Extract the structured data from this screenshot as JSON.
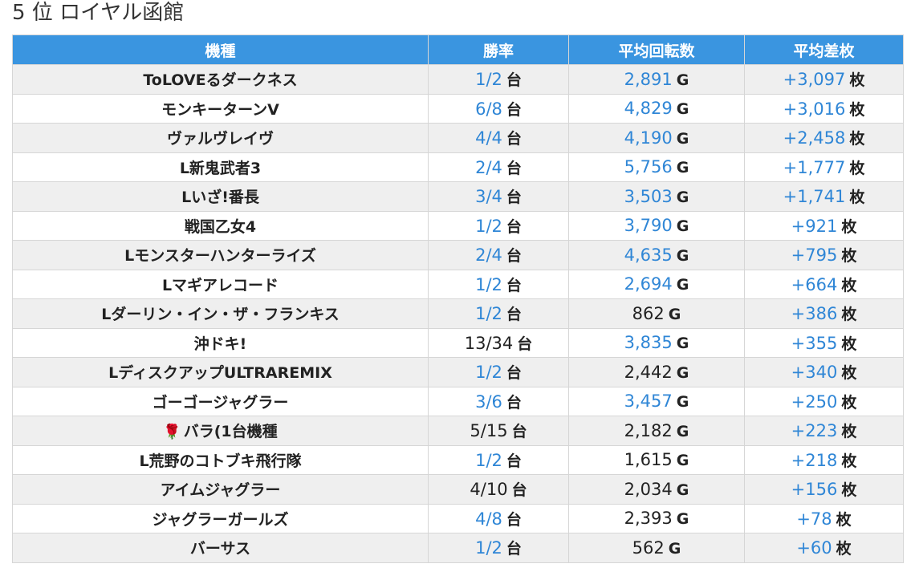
{
  "page": {
    "title": "5 位 ロイヤル函館"
  },
  "table": {
    "headers": [
      "機種",
      "勝率",
      "平均回転数",
      "平均差枚"
    ],
    "rows": [
      {
        "machine": "ToLOVEるダークネス",
        "win_rate": "1/2",
        "win_rate_unit": "台",
        "avg_spins": "2,891",
        "avg_spins_unit": "G",
        "avg_diff": "+3,097",
        "avg_diff_unit": "枚",
        "win_rate_blue": true,
        "avg_spins_blue": true,
        "avg_diff_blue": true
      },
      {
        "machine": "モンキーターンV",
        "win_rate": "6/8",
        "win_rate_unit": "台",
        "avg_spins": "4,829",
        "avg_spins_unit": "G",
        "avg_diff": "+3,016",
        "avg_diff_unit": "枚",
        "win_rate_blue": true,
        "avg_spins_blue": true,
        "avg_diff_blue": true
      },
      {
        "machine": "ヴァルヴレイヴ",
        "win_rate": "4/4",
        "win_rate_unit": "台",
        "avg_spins": "4,190",
        "avg_spins_unit": "G",
        "avg_diff": "+2,458",
        "avg_diff_unit": "枚",
        "win_rate_blue": true,
        "avg_spins_blue": true,
        "avg_diff_blue": true
      },
      {
        "machine": "L新鬼武者3",
        "win_rate": "2/4",
        "win_rate_unit": "台",
        "avg_spins": "5,756",
        "avg_spins_unit": "G",
        "avg_diff": "+1,777",
        "avg_diff_unit": "枚",
        "win_rate_blue": true,
        "avg_spins_blue": true,
        "avg_diff_blue": true
      },
      {
        "machine": "Lいざ!番長",
        "win_rate": "3/4",
        "win_rate_unit": "台",
        "avg_spins": "3,503",
        "avg_spins_unit": "G",
        "avg_diff": "+1,741",
        "avg_diff_unit": "枚",
        "win_rate_blue": true,
        "avg_spins_blue": true,
        "avg_diff_blue": true
      },
      {
        "machine": "戦国乙女4",
        "win_rate": "1/2",
        "win_rate_unit": "台",
        "avg_spins": "3,790",
        "avg_spins_unit": "G",
        "avg_diff": "+921",
        "avg_diff_unit": "枚",
        "win_rate_blue": true,
        "avg_spins_blue": true,
        "avg_diff_blue": true
      },
      {
        "machine": "Lモンスターハンターライズ",
        "win_rate": "2/4",
        "win_rate_unit": "台",
        "avg_spins": "4,635",
        "avg_spins_unit": "G",
        "avg_diff": "+795",
        "avg_diff_unit": "枚",
        "win_rate_blue": true,
        "avg_spins_blue": true,
        "avg_diff_blue": true
      },
      {
        "machine": "Lマギアレコード",
        "win_rate": "1/2",
        "win_rate_unit": "台",
        "avg_spins": "2,694",
        "avg_spins_unit": "G",
        "avg_diff": "+664",
        "avg_diff_unit": "枚",
        "win_rate_blue": true,
        "avg_spins_blue": true,
        "avg_diff_blue": true
      },
      {
        "machine": "Lダーリン・イン・ザ・フランキス",
        "win_rate": "1/2",
        "win_rate_unit": "台",
        "avg_spins": "862",
        "avg_spins_unit": "G",
        "avg_diff": "+386",
        "avg_diff_unit": "枚",
        "win_rate_blue": true,
        "avg_spins_blue": false,
        "avg_diff_blue": true
      },
      {
        "machine": "沖ドキ!",
        "win_rate": "13/34",
        "win_rate_unit": "台",
        "avg_spins": "3,835",
        "avg_spins_unit": "G",
        "avg_diff": "+355",
        "avg_diff_unit": "枚",
        "win_rate_blue": false,
        "avg_spins_blue": true,
        "avg_diff_blue": true
      },
      {
        "machine": "LディスクアップULTRAREMIX",
        "win_rate": "1/2",
        "win_rate_unit": "台",
        "avg_spins": "2,442",
        "avg_spins_unit": "G",
        "avg_diff": "+340",
        "avg_diff_unit": "枚",
        "win_rate_blue": true,
        "avg_spins_blue": false,
        "avg_diff_blue": true
      },
      {
        "machine": "ゴーゴージャグラー",
        "win_rate": "3/6",
        "win_rate_unit": "台",
        "avg_spins": "3,457",
        "avg_spins_unit": "G",
        "avg_diff": "+250",
        "avg_diff_unit": "枚",
        "win_rate_blue": true,
        "avg_spins_blue": true,
        "avg_diff_blue": true
      },
      {
        "machine": "バラ(1台機種",
        "machine_icon": "🌹",
        "win_rate": "5/15",
        "win_rate_unit": "台",
        "avg_spins": "2,182",
        "avg_spins_unit": "G",
        "avg_diff": "+223",
        "avg_diff_unit": "枚",
        "win_rate_blue": false,
        "avg_spins_blue": false,
        "avg_diff_blue": true
      },
      {
        "machine": "L荒野のコトブキ飛行隊",
        "win_rate": "1/2",
        "win_rate_unit": "台",
        "avg_spins": "1,615",
        "avg_spins_unit": "G",
        "avg_diff": "+218",
        "avg_diff_unit": "枚",
        "win_rate_blue": true,
        "avg_spins_blue": false,
        "avg_diff_blue": true
      },
      {
        "machine": "アイムジャグラー",
        "win_rate": "4/10",
        "win_rate_unit": "台",
        "avg_spins": "2,034",
        "avg_spins_unit": "G",
        "avg_diff": "+156",
        "avg_diff_unit": "枚",
        "win_rate_blue": false,
        "avg_spins_blue": false,
        "avg_diff_blue": true
      },
      {
        "machine": "ジャグラーガールズ",
        "win_rate": "4/8",
        "win_rate_unit": "台",
        "avg_spins": "2,393",
        "avg_spins_unit": "G",
        "avg_diff": "+78",
        "avg_diff_unit": "枚",
        "win_rate_blue": true,
        "avg_spins_blue": false,
        "avg_diff_blue": true
      },
      {
        "machine": "バーサス",
        "win_rate": "1/2",
        "win_rate_unit": "台",
        "avg_spins": "562",
        "avg_spins_unit": "G",
        "avg_diff": "+60",
        "avg_diff_unit": "枚",
        "win_rate_blue": true,
        "avg_spins_blue": false,
        "avg_diff_blue": true
      }
    ]
  },
  "colors": {
    "header_bg": "#3a95e0",
    "value_blue": "#2f86d6",
    "row_alt": "#efefef"
  }
}
